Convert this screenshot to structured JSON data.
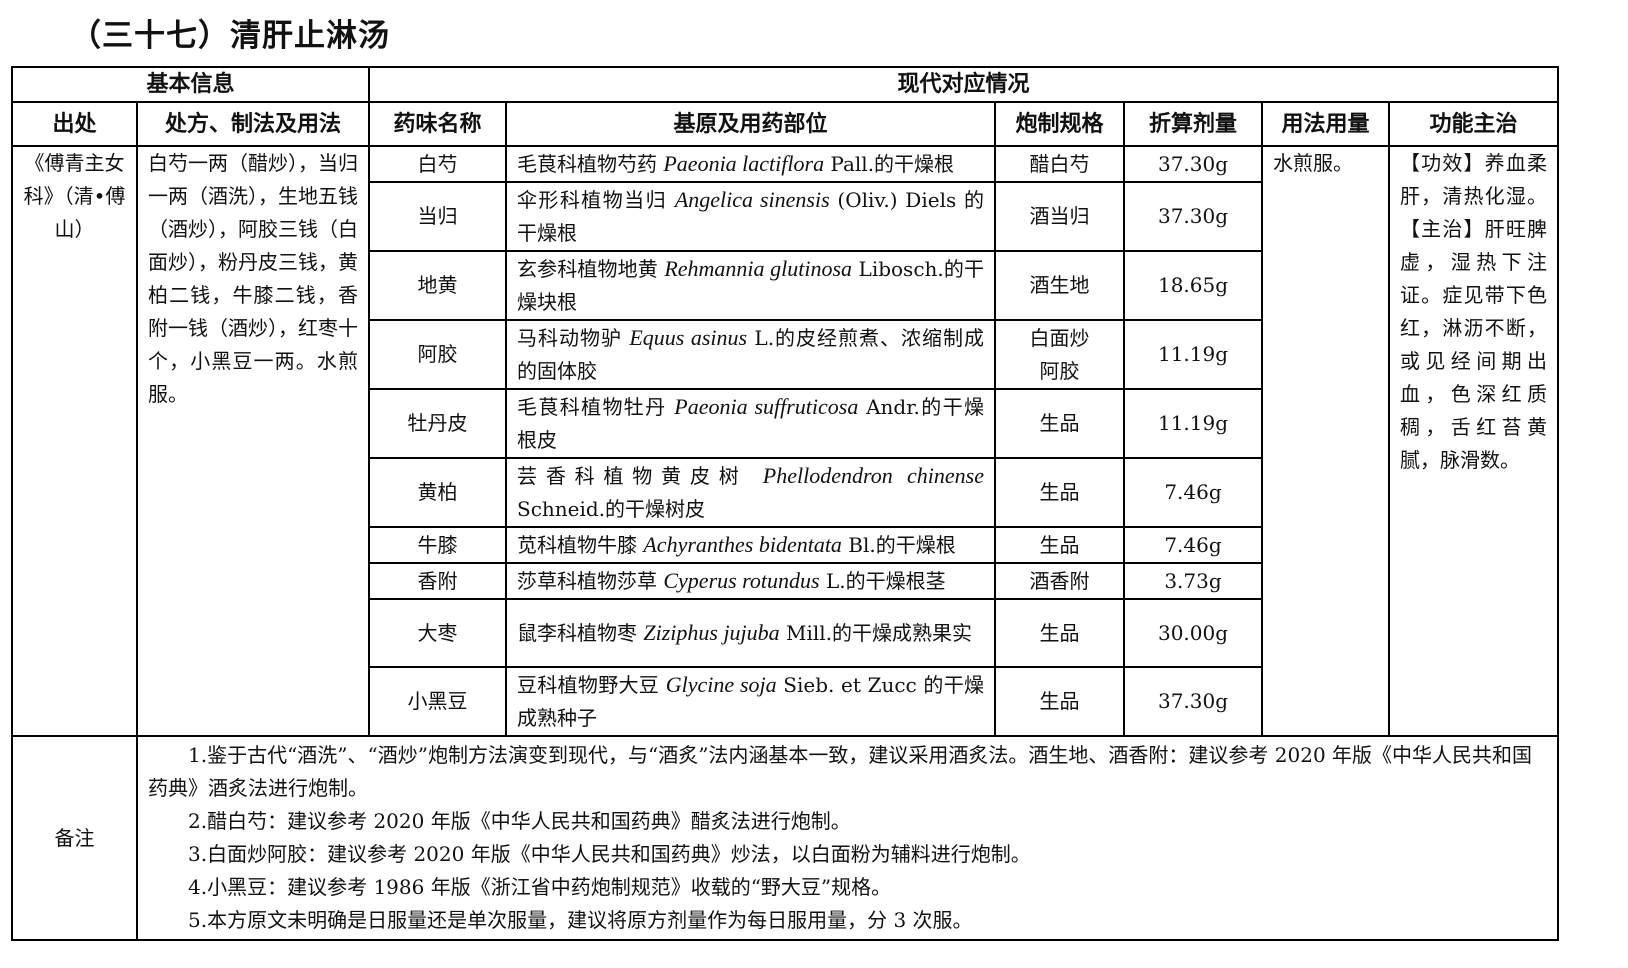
{
  "title": "（三十七）清肝止淋汤",
  "headers": {
    "group1": "基本信息",
    "group2": "现代对应情况",
    "cols": [
      "出处",
      "处方、制法及用法",
      "药味名称",
      "基原及用药部位",
      "炮制规格",
      "折算剂量",
      "用法用量",
      "功能主治"
    ]
  },
  "source": "《傅青主女科》（清•傅山）",
  "prescription": "白芍一两（醋炒），当归一两（酒洗），生地五钱（酒炒），阿胶三钱（白面炒），粉丹皮三钱，黄柏二钱，牛膝二钱，香附一钱（酒炒），红枣十个，小黑豆一两。水煎服。",
  "usage": "水煎服。",
  "function": "【功效】养血柔肝，清热化湿。【主治】肝旺脾虚，湿热下注证。症见带下色红，淋沥不断，或见经间期出血，色深红质稠，舌红苔黄腻，脉滑数。",
  "rows": [
    {
      "name": "白芍",
      "pre": "毛茛科植物芍药 ",
      "latin": "Paeonia lactiflora",
      "post": " Pall.的干燥根",
      "proc": "醋白芍",
      "dose": "37.30g"
    },
    {
      "name": "当归",
      "pre": "伞形科植物当归 ",
      "latin": "Angelica sinensis",
      "post": " (Oliv.) Diels 的干燥根",
      "proc": "酒当归",
      "dose": "37.30g"
    },
    {
      "name": "地黄",
      "pre": "玄参科植物地黄 ",
      "latin": "Rehmannia glutinosa",
      "post": " Libosch.的干燥块根",
      "proc": "酒生地",
      "dose": "18.65g"
    },
    {
      "name": "阿胶",
      "pre": "马科动物驴 ",
      "latin": "Equus asinus",
      "post": " L.的皮经煎煮、浓缩制成的固体胶",
      "proc": "白面炒阿胶",
      "dose": "11.19g"
    },
    {
      "name": "牡丹皮",
      "pre": "毛茛科植物牡丹 ",
      "latin": "Paeonia suffruticosa",
      "post": " Andr.的干燥根皮",
      "proc": "生品",
      "dose": "11.19g"
    },
    {
      "name": "黄柏",
      "pre": "芸香科植物黄皮树 ",
      "latin": "Phellodendron chinense",
      "post": " Schneid.的干燥树皮",
      "proc": "生品",
      "dose": "7.46g"
    },
    {
      "name": "牛膝",
      "pre": "苋科植物牛膝 ",
      "latin": "Achyranthes bidentata",
      "post": " Bl.的干燥根",
      "proc": "生品",
      "dose": "7.46g"
    },
    {
      "name": "香附",
      "pre": "莎草科植物莎草 ",
      "latin": "Cyperus rotundus",
      "post": " L.的干燥根茎",
      "proc": "酒香附",
      "dose": "3.73g"
    },
    {
      "name": "大枣",
      "pre": "鼠李科植物枣 ",
      "latin": "Ziziphus jujuba",
      "post": " Mill.的干燥成熟果实",
      "proc": "生品",
      "dose": "30.00g"
    },
    {
      "name": "小黑豆",
      "pre": "豆科植物野大豆 ",
      "latin": "Glycine soja",
      "post": " Sieb. et Zucc 的干燥成熟种子",
      "proc": "生品",
      "dose": "37.30g"
    }
  ],
  "notes_label": "备注",
  "notes": [
    "1.鉴于古代“酒洗”、“酒炒”炮制方法演变到现代，与“酒炙”法内涵基本一致，建议采用酒炙法。酒生地、酒香附：建议参考 2020 年版《中华人民共和国药典》酒炙法进行炮制。",
    "2.醋白芍：建议参考 2020 年版《中华人民共和国药典》醋炙法进行炮制。",
    "3.白面炒阿胶：建议参考 2020 年版《中华人民共和国药典》炒法，以白面粉为辅料进行炮制。",
    "4.小黑豆：建议参考 1986 年版《浙江省中药炮制规范》收载的“野大豆”规格。",
    "5.本方原文未明确是日服量还是单次服量，建议将原方剂量作为每日服用量，分 3 次服。"
  ]
}
